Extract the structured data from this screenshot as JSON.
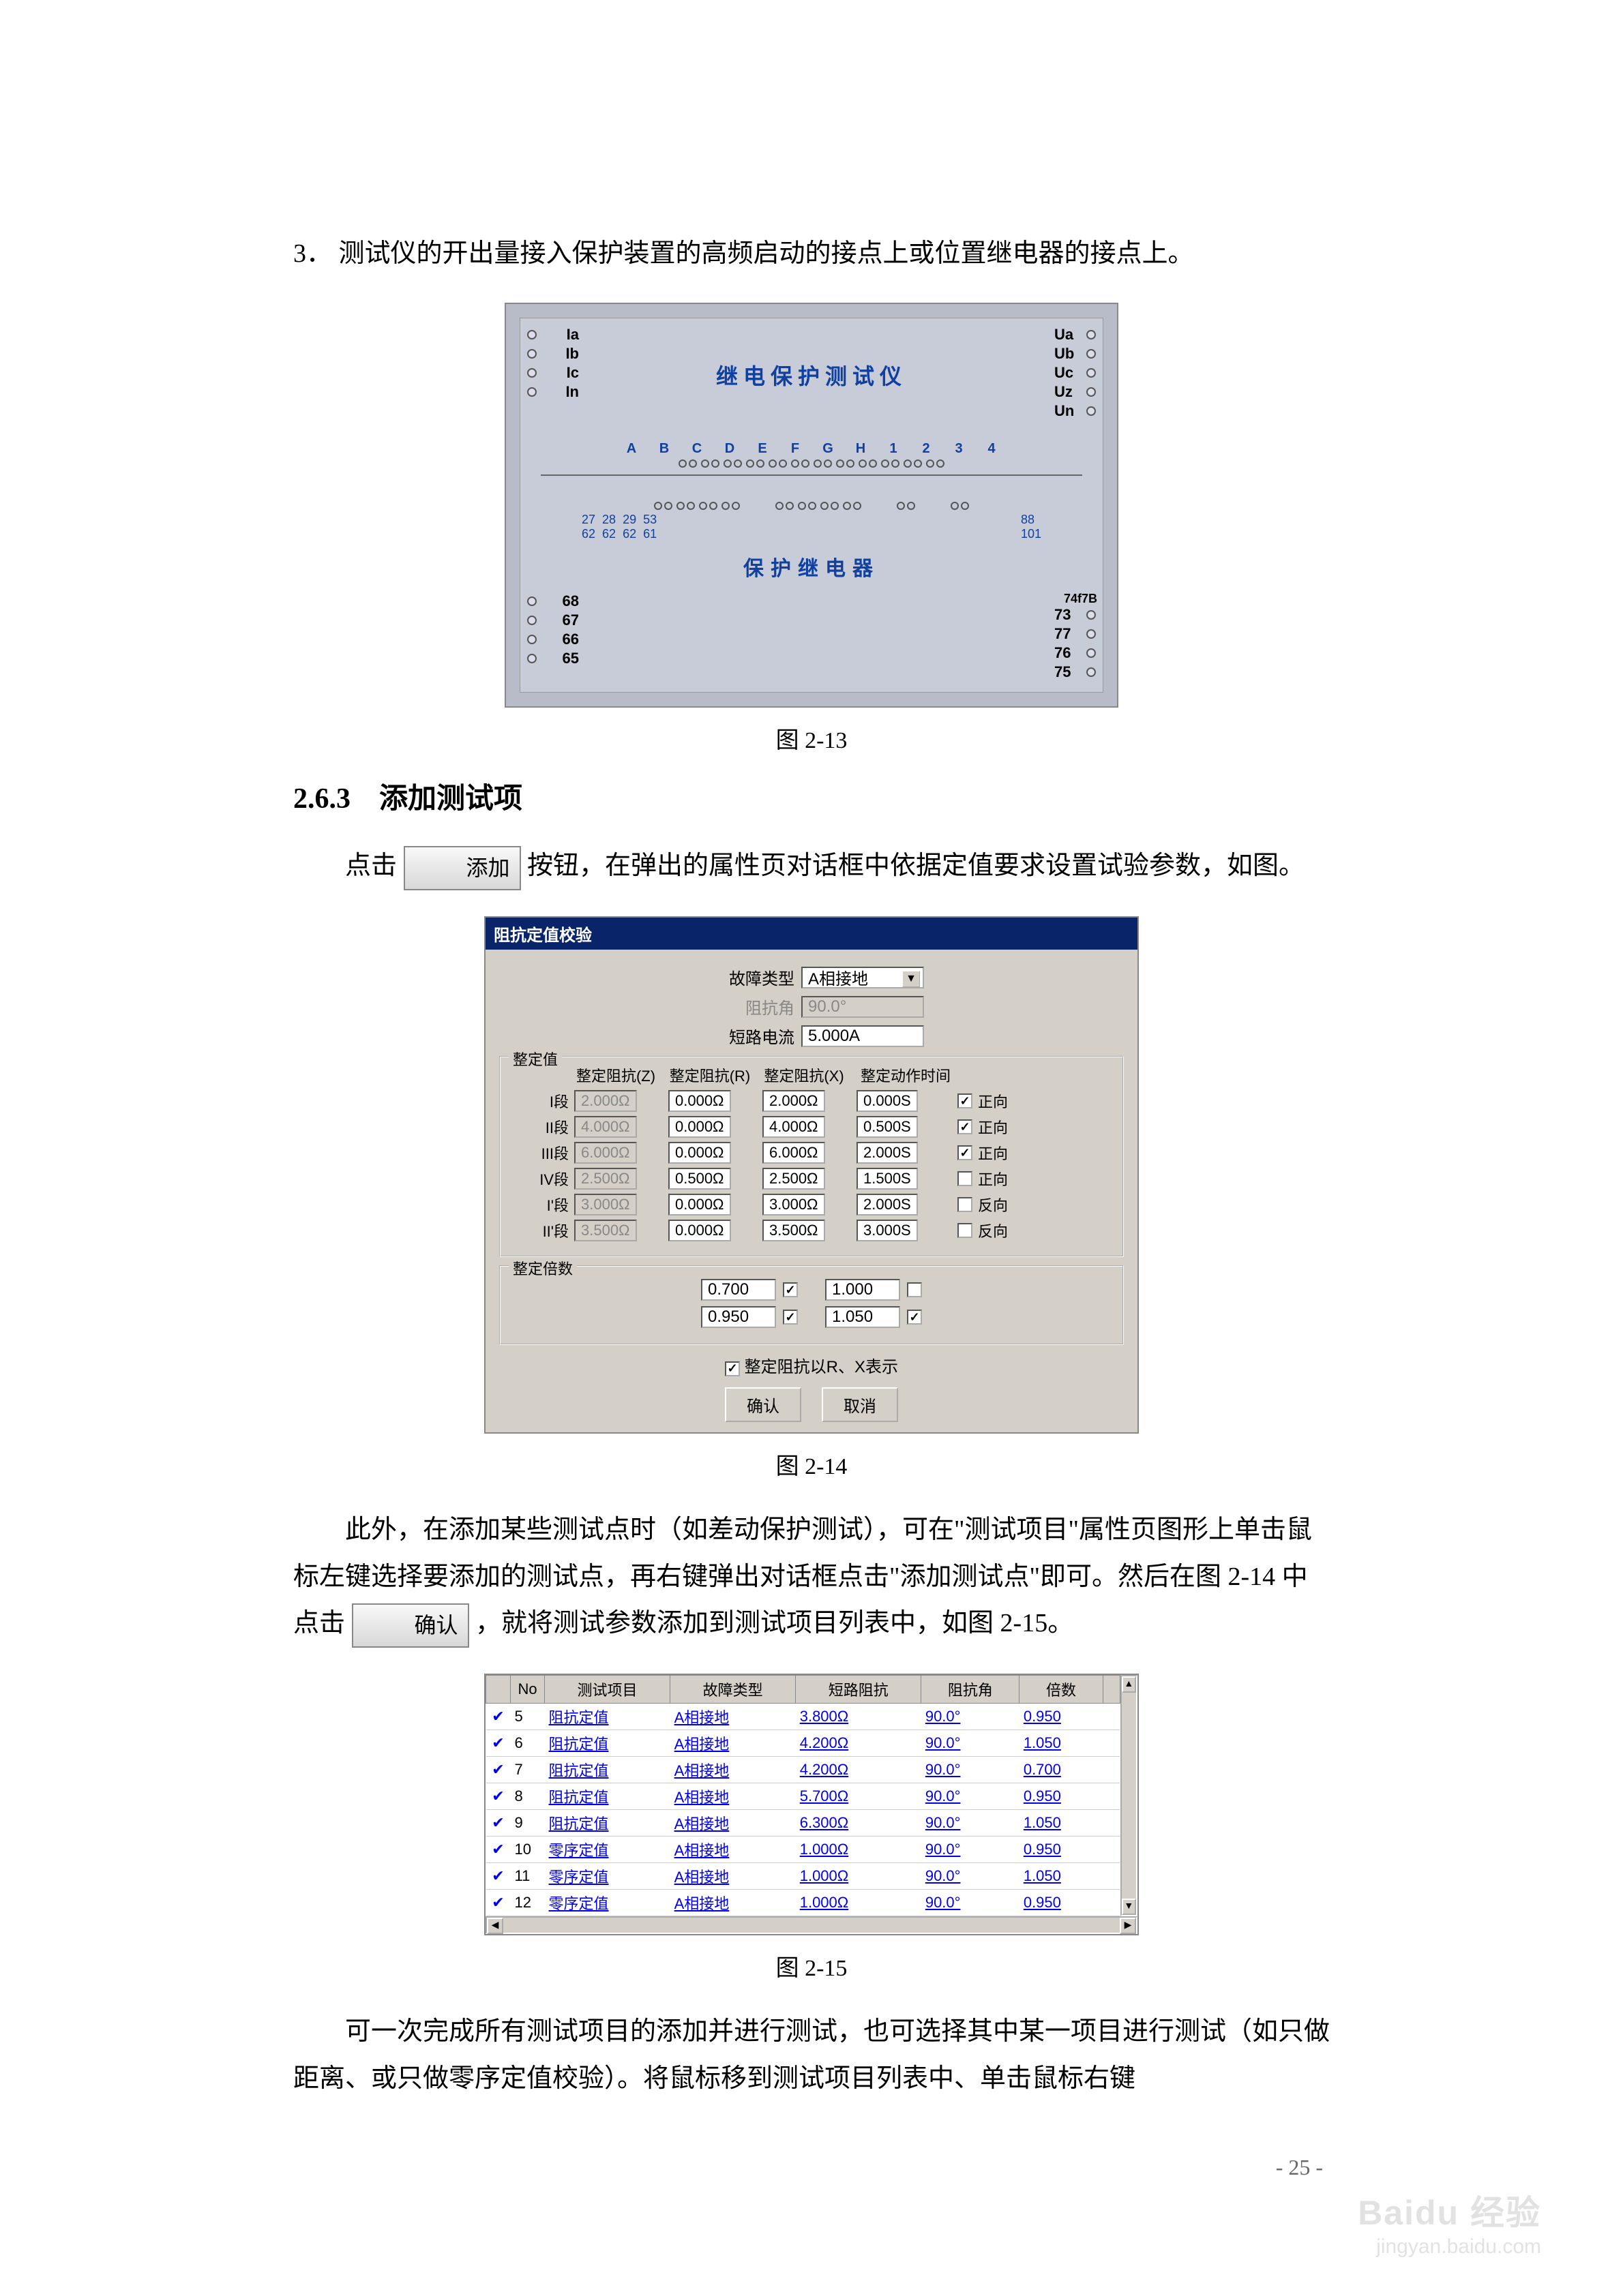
{
  "para1_prefix": "3．",
  "para1": "测试仪的开出量接入保护装置的高频启动的接点上或位置继电器的接点上。",
  "fig213": {
    "left_terms": [
      "Ia",
      "Ib",
      "Ic",
      "In"
    ],
    "right_terms": [
      "Ua",
      "Ub",
      "Uc",
      "Uz",
      "Un"
    ],
    "title1": "继电保护测试仪",
    "ports": [
      "A",
      "B",
      "C",
      "D",
      "E",
      "F",
      "G",
      "H",
      "1",
      "2",
      "3",
      "4"
    ],
    "nums_top": [
      "27",
      "28",
      "29",
      "53"
    ],
    "nums_bot": [
      "62",
      "62",
      "62",
      "61"
    ],
    "nums_right": [
      "88",
      "101"
    ],
    "title2": "保护继电器",
    "bl": [
      "68",
      "67",
      "66",
      "65"
    ],
    "br_top": "74f7B",
    "br": [
      "73",
      "77",
      "76",
      "75"
    ]
  },
  "cap213": "图 2-13",
  "sec_heading": "2.6.3　添加测试项",
  "para2_a": "点击 ",
  "btn_add": "添加",
  "para2_b": " 按钮，在弹出的属性页对话框中依据定值要求设置试验参数，如图。",
  "dlg": {
    "title": "阻抗定值校验",
    "lbl_fault": "故障类型",
    "val_fault": "A相接地",
    "lbl_angle": "阻抗角",
    "val_angle": "90.0°",
    "lbl_current": "短路电流",
    "val_current": "5.000A",
    "grp_setting": "整定值",
    "hdr": [
      "整定阻抗(Z)",
      "整定阻抗(R)",
      "整定阻抗(X)",
      "整定动作时间"
    ],
    "rows": [
      {
        "seg": "I段",
        "z": "2.000Ω",
        "r": "0.000Ω",
        "x": "2.000Ω",
        "t": "0.000S",
        "chk": true,
        "dir": "正向"
      },
      {
        "seg": "II段",
        "z": "4.000Ω",
        "r": "0.000Ω",
        "x": "4.000Ω",
        "t": "0.500S",
        "chk": true,
        "dir": "正向"
      },
      {
        "seg": "III段",
        "z": "6.000Ω",
        "r": "0.000Ω",
        "x": "6.000Ω",
        "t": "2.000S",
        "chk": true,
        "dir": "正向"
      },
      {
        "seg": "IV段",
        "z": "2.500Ω",
        "r": "0.500Ω",
        "x": "2.500Ω",
        "t": "1.500S",
        "chk": false,
        "dir": "正向"
      },
      {
        "seg": "I'段",
        "z": "3.000Ω",
        "r": "0.000Ω",
        "x": "3.000Ω",
        "t": "2.000S",
        "chk": false,
        "dir": "反向"
      },
      {
        "seg": "II'段",
        "z": "3.500Ω",
        "r": "0.000Ω",
        "x": "3.500Ω",
        "t": "3.000S",
        "chk": false,
        "dir": "反向"
      }
    ],
    "grp_mult": "整定倍数",
    "mult": [
      {
        "v": "0.700",
        "c": true
      },
      {
        "v": "1.000",
        "c": false
      },
      {
        "v": "0.950",
        "c": true
      },
      {
        "v": "1.050",
        "c": true
      }
    ],
    "chk_rx": "整定阻抗以R、X表示",
    "btn_ok": "确认",
    "btn_cancel": "取消"
  },
  "cap214": "图 2-14",
  "para3": "此外，在添加某些测试点时（如差动保护测试），可在\"测试项目\"属性页图形上单击鼠标左键选择要添加的测试点，再右键弹出对话框点击\"添加测试点\"即可。然后在图 2-14 中点击 ",
  "btn_confirm": "确认",
  "para3b": " ，就将测试参数添加到测试项目列表中，如图 2-15。",
  "tbl": {
    "headers": [
      "",
      "No",
      "测试项目",
      "故障类型",
      "短路阻抗",
      "阻抗角",
      "倍数",
      ""
    ],
    "rows": [
      {
        "no": "5",
        "p": "阻抗定值",
        "f": "A相接地",
        "z": "3.800Ω",
        "a": "90.0°",
        "m": "0.950"
      },
      {
        "no": "6",
        "p": "阻抗定值",
        "f": "A相接地",
        "z": "4.200Ω",
        "a": "90.0°",
        "m": "1.050"
      },
      {
        "no": "7",
        "p": "阻抗定值",
        "f": "A相接地",
        "z": "4.200Ω",
        "a": "90.0°",
        "m": "0.700"
      },
      {
        "no": "8",
        "p": "阻抗定值",
        "f": "A相接地",
        "z": "5.700Ω",
        "a": "90.0°",
        "m": "0.950"
      },
      {
        "no": "9",
        "p": "阻抗定值",
        "f": "A相接地",
        "z": "6.300Ω",
        "a": "90.0°",
        "m": "1.050"
      },
      {
        "no": "10",
        "p": "零序定值",
        "f": "A相接地",
        "z": "1.000Ω",
        "a": "90.0°",
        "m": "0.950"
      },
      {
        "no": "11",
        "p": "零序定值",
        "f": "A相接地",
        "z": "1.000Ω",
        "a": "90.0°",
        "m": "1.050"
      },
      {
        "no": "12",
        "p": "零序定值",
        "f": "A相接地",
        "z": "1.000Ω",
        "a": "90.0°",
        "m": "0.950"
      }
    ]
  },
  "cap215": "图 2-15",
  "para4": "可一次完成所有测试项目的添加并进行测试，也可选择其中某一项目进行测试（如只做距离、或只做零序定值校验）。将鼠标移到测试项目列表中、单击鼠标右键",
  "page_num": "- 25 -",
  "wm1": "Baidu 经验",
  "wm2": "jingyan.baidu.com"
}
